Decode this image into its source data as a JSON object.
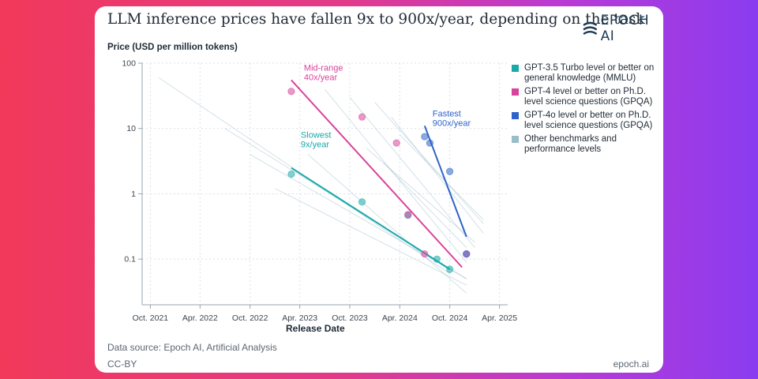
{
  "header": {
    "title": "LLM inference prices have fallen 9x to 900x/year, depending on the task",
    "logo_text": "EPOCH AI"
  },
  "footer": {
    "source": "Data source: Epoch AI, Artificial Analysis",
    "license": "CC-BY",
    "site": "epoch.ai"
  },
  "colors": {
    "mmlu": "#1aa8a8",
    "gpqa_gpt4": "#d9439b",
    "gpqa_gpt4o": "#2f63c9",
    "other": "#9bbcc9"
  },
  "chart_data": {
    "type": "scatter",
    "title": "LLM inference prices have fallen 9x to 900x/year, depending on the task",
    "ylabel": "Price (USD per million tokens)",
    "xlabel": "Release Date",
    "yscale": "log",
    "ylim": [
      0.02,
      100
    ],
    "xlim": [
      "2021-09-01",
      "2025-05-01"
    ],
    "y_ticks": [
      100,
      10,
      1,
      0.1
    ],
    "y_tick_labels": [
      "100",
      "10",
      "1",
      "0.1"
    ],
    "x_ticks": [
      "2021-10-01",
      "2022-04-01",
      "2022-10-01",
      "2023-04-01",
      "2023-10-01",
      "2024-04-01",
      "2024-10-01",
      "2025-04-01"
    ],
    "x_tick_labels": [
      "Oct. 2021",
      "Apr. 2022",
      "Oct. 2022",
      "Apr. 2023",
      "Oct. 2023",
      "Apr. 2024",
      "Oct. 2024",
      "Apr. 2025"
    ],
    "legend": [
      {
        "key": "mmlu",
        "label": "GPT-3.5 Turbo level or better on general knowledge (MMLU)"
      },
      {
        "key": "gpqa_gpt4",
        "label": "GPT-4 level or better on Ph.D. level science questions (GPQA)"
      },
      {
        "key": "gpqa_gpt4o",
        "label": "GPT-4o level or better on Ph.D. level science questions (GPQA)"
      },
      {
        "key": "other",
        "label": "Other benchmarks and performance levels"
      }
    ],
    "series": [
      {
        "name": "GPT-3.5 Turbo level or better on general knowledge (MMLU)",
        "key": "mmlu",
        "points": [
          [
            "2023-03-01",
            2.0
          ],
          [
            "2023-11-15",
            0.75
          ],
          [
            "2024-05-01",
            0.47
          ],
          [
            "2024-08-15",
            0.1
          ],
          [
            "2024-10-01",
            0.07
          ]
        ],
        "trend": [
          [
            "2023-03-01",
            2.5
          ],
          [
            "2024-10-01",
            0.07
          ]
        ],
        "annotation": [
          "Slowest",
          "9x/year"
        ]
      },
      {
        "name": "GPT-4 level or better on Ph.D. level science questions (GPQA)",
        "key": "gpqa_gpt4",
        "points": [
          [
            "2023-03-01",
            37
          ],
          [
            "2023-11-15",
            15
          ],
          [
            "2024-03-20",
            6
          ],
          [
            "2024-05-01",
            0.48
          ],
          [
            "2024-07-01",
            0.12
          ],
          [
            "2024-12-01",
            0.12
          ]
        ],
        "trend": [
          [
            "2023-03-01",
            55
          ],
          [
            "2024-11-15",
            0.075
          ]
        ],
        "annotation": [
          "Mid-range",
          "40x/year"
        ]
      },
      {
        "name": "GPT-4o level or better on Ph.D. level science questions (GPQA)",
        "key": "gpqa_gpt4o",
        "points": [
          [
            "2024-07-01",
            7.5
          ],
          [
            "2024-07-20",
            6.0
          ],
          [
            "2024-10-01",
            2.2
          ],
          [
            "2024-12-01",
            0.12
          ]
        ],
        "trend": [
          [
            "2024-07-01",
            11
          ],
          [
            "2024-12-01",
            0.22
          ]
        ],
        "annotation": [
          "Fastest",
          "900x/year"
        ]
      }
    ],
    "other_trends": [
      [
        [
          "2021-11-01",
          60
        ],
        [
          "2024-10-01",
          0.06
        ]
      ],
      [
        [
          "2022-07-01",
          10
        ],
        [
          "2024-12-01",
          0.05
        ]
      ],
      [
        [
          "2022-10-01",
          4
        ],
        [
          "2024-12-01",
          0.05
        ]
      ],
      [
        [
          "2023-01-01",
          1.2
        ],
        [
          "2024-12-01",
          0.04
        ]
      ],
      [
        [
          "2023-07-01",
          40
        ],
        [
          "2024-12-01",
          0.09
        ]
      ],
      [
        [
          "2023-10-01",
          30
        ],
        [
          "2025-01-01",
          0.15
        ]
      ],
      [
        [
          "2024-01-01",
          25
        ],
        [
          "2025-02-01",
          0.35
        ]
      ],
      [
        [
          "2024-03-01",
          15
        ],
        [
          "2025-02-01",
          0.25
        ]
      ],
      [
        [
          "2023-12-01",
          5
        ],
        [
          "2025-01-01",
          0.18
        ]
      ],
      [
        [
          "2024-04-01",
          8
        ],
        [
          "2025-02-01",
          0.4
        ]
      ],
      [
        [
          "2023-05-01",
          4
        ],
        [
          "2024-12-01",
          0.03
        ]
      ],
      [
        [
          "2024-02-01",
          3
        ],
        [
          "2024-12-01",
          0.15
        ]
      ]
    ]
  }
}
